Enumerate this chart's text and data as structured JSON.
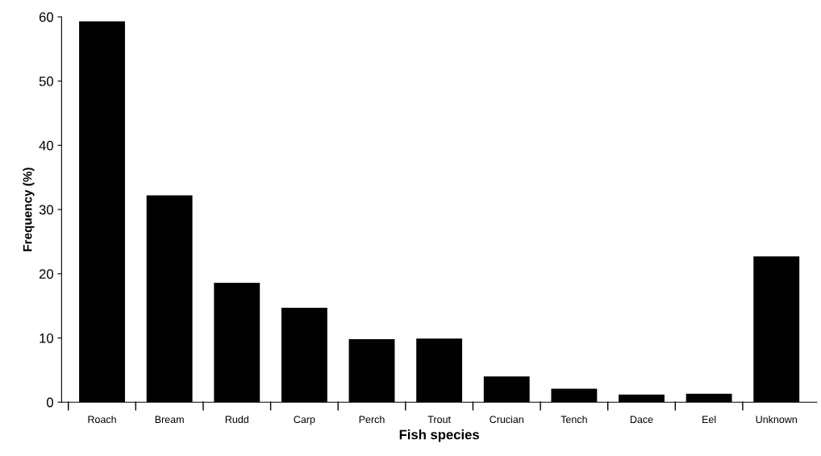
{
  "chart_data": {
    "type": "bar",
    "xlabel": "Fish species",
    "ylabel": "Frequency (%)",
    "categories": [
      "Roach",
      "Bream",
      "Rudd",
      "Carp",
      "Perch",
      "Trout",
      "Crucian",
      "Tench",
      "Dace",
      "Eel",
      "Unknown"
    ],
    "values": [
      59.3,
      32.2,
      18.6,
      14.7,
      9.8,
      9.9,
      4.0,
      2.1,
      1.2,
      1.3,
      22.7
    ],
    "color": "#000000",
    "ylim": [
      0,
      60
    ],
    "yticks": [
      0,
      10,
      20,
      30,
      40,
      50,
      60
    ],
    "grid": false
  }
}
